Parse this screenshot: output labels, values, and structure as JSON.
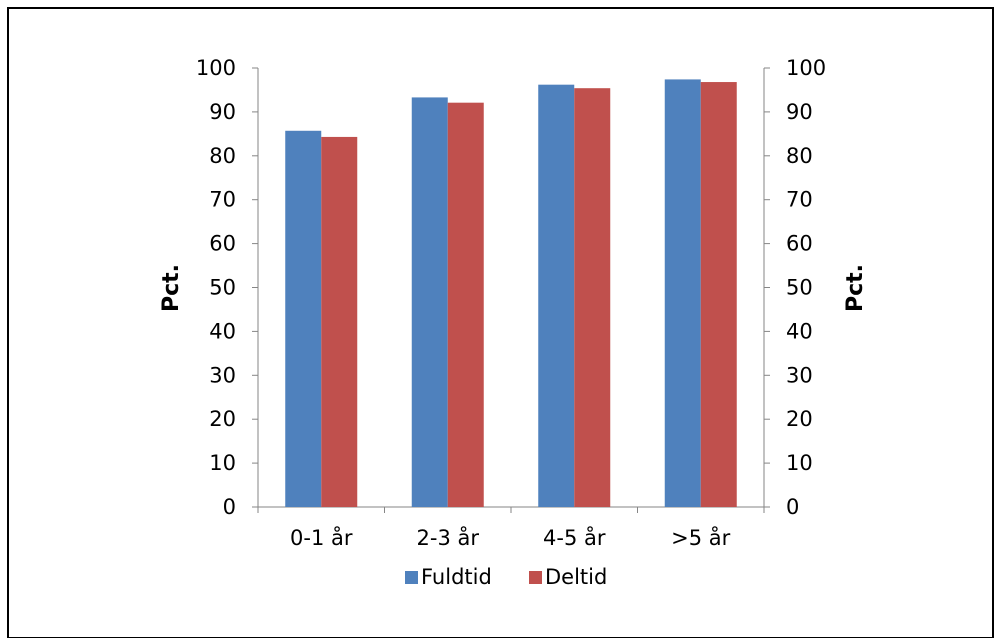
{
  "chart_data": {
    "type": "bar",
    "categories": [
      "0-1 år",
      "2-3 år",
      "4-5 år",
      ">5 år"
    ],
    "series": [
      {
        "name": "Fuldtid",
        "color": "#4f81bd",
        "values": [
          85.7,
          93.3,
          96.2,
          97.4
        ]
      },
      {
        "name": "Deltid",
        "color": "#c0504d",
        "values": [
          84.3,
          92.1,
          95.4,
          96.8
        ]
      }
    ],
    "ylabel_left": "Pct.",
    "ylabel_right": "Pct.",
    "ylim": [
      0,
      100
    ],
    "yticks": [
      0,
      10,
      20,
      30,
      40,
      50,
      60,
      70,
      80,
      90,
      100
    ],
    "grid": false,
    "legend_position": "bottom",
    "colors": {
      "axis": "#868686",
      "frame": "#000000"
    }
  }
}
